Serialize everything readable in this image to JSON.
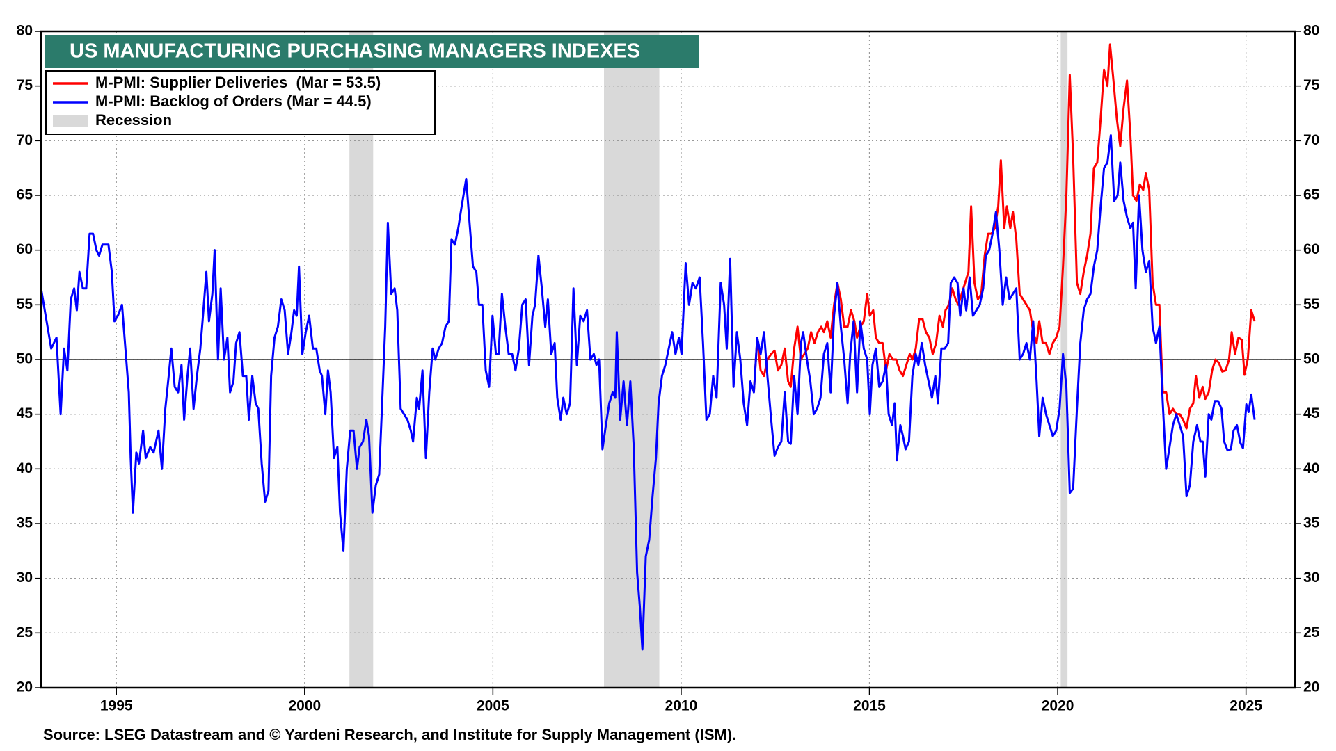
{
  "chart_data": {
    "type": "line",
    "title": "US MANUFACTURING PURCHASING MANAGERS INDEXES",
    "source": "Source: LSEG Datastream and © Yardeni Research, and Institute for Supply Management (ISM).",
    "xlim": [
      1993.0,
      2026.3
    ],
    "xticks": [
      1995,
      2000,
      2005,
      2010,
      2015,
      2020,
      2025
    ],
    "ylim": [
      20,
      80
    ],
    "yticks": [
      20,
      25,
      30,
      35,
      40,
      45,
      50,
      55,
      60,
      65,
      70,
      75,
      80
    ],
    "y2lim": [
      20,
      80
    ],
    "y2ticks": [
      20,
      25,
      30,
      35,
      40,
      45,
      50,
      55,
      60,
      65,
      70,
      75,
      80
    ],
    "grid": true,
    "reference_line": 50,
    "legend": "upper left",
    "recessions": {
      "name": "Recession",
      "color": "#d9d9d9",
      "periods": [
        [
          2001.19,
          2001.82
        ],
        [
          2007.95,
          2009.42
        ],
        [
          2020.08,
          2020.26
        ]
      ]
    },
    "series": [
      {
        "name": "M-PMI: Supplier Deliveries  (Mar = 53.5)",
        "color": "#ff0000",
        "x": [
          2011.93,
          2012.02,
          2012.11,
          2012.2,
          2012.29,
          2012.39,
          2012.48,
          2012.57,
          2012.66,
          2012.75,
          2012.84,
          2012.91,
          2013.0,
          2013.09,
          2013.18,
          2013.27,
          2013.36,
          2013.45,
          2013.54,
          2013.63,
          2013.72,
          2013.79,
          2013.88,
          2013.97,
          2014.06,
          2014.15,
          2014.24,
          2014.33,
          2014.42,
          2014.51,
          2014.6,
          2014.67,
          2014.76,
          2014.85,
          2014.94,
          2015.01,
          2015.1,
          2015.17,
          2015.26,
          2015.35,
          2015.44,
          2015.53,
          2015.62,
          2015.71,
          2015.8,
          2015.89,
          2015.98,
          2016.07,
          2016.14,
          2016.23,
          2016.32,
          2016.41,
          2016.5,
          2016.59,
          2016.68,
          2016.77,
          2016.86,
          2016.95,
          2017.02,
          2017.11,
          2017.2,
          2017.29,
          2017.36,
          2017.45,
          2017.54,
          2017.63,
          2017.7,
          2017.79,
          2017.88,
          2017.97,
          2018.06,
          2018.15,
          2018.24,
          2018.33,
          2018.42,
          2018.49,
          2018.58,
          2018.65,
          2018.74,
          2018.81,
          2018.9,
          2018.99,
          2019.08,
          2019.17,
          2019.26,
          2019.35,
          2019.44,
          2019.51,
          2019.6,
          2019.69,
          2019.78,
          2019.87,
          2019.96,
          2020.05,
          2020.14,
          2020.23,
          2020.32,
          2020.41,
          2020.51,
          2020.6,
          2020.69,
          2020.78,
          2020.87,
          2020.96,
          2021.05,
          2021.14,
          2021.23,
          2021.32,
          2021.39,
          2021.48,
          2021.57,
          2021.66,
          2021.75,
          2021.84,
          2021.93,
          2022.0,
          2022.09,
          2022.18,
          2022.27,
          2022.34,
          2022.43,
          2022.52,
          2022.61,
          2022.7,
          2022.79,
          2022.88,
          2022.97,
          2023.06,
          2023.15,
          2023.24,
          2023.33,
          2023.42,
          2023.51,
          2023.6,
          2023.67,
          2023.76,
          2023.85,
          2023.92,
          2024.01,
          2024.1,
          2024.19,
          2024.28,
          2024.37,
          2024.46,
          2024.55,
          2024.62,
          2024.71,
          2024.8,
          2024.89,
          2024.96,
          2025.05,
          2025.14,
          2025.23
        ],
        "values": [
          47,
          52,
          49,
          48.5,
          50,
          50.5,
          50.8,
          49,
          49.5,
          51,
          48,
          47.5,
          51,
          53,
          50,
          50.5,
          51,
          52.5,
          51.5,
          52.5,
          53,
          52.5,
          53.5,
          52,
          55,
          57,
          55.5,
          53,
          53,
          54.5,
          53.5,
          52,
          53,
          53.5,
          56,
          54,
          54.5,
          52,
          51.5,
          51.5,
          49,
          50.5,
          50,
          50,
          49,
          48.5,
          49.5,
          50.5,
          50,
          51,
          53.7,
          53.7,
          52.5,
          52,
          50.5,
          51.5,
          54,
          53,
          54.5,
          55,
          56.5,
          55.5,
          55,
          56,
          57,
          58,
          64,
          57,
          55.5,
          56,
          59.5,
          61.5,
          61.5,
          62,
          64,
          68.2,
          62,
          64,
          62,
          63.5,
          61,
          56,
          55.5,
          55,
          54.5,
          52.5,
          51.5,
          53.5,
          51.5,
          51.5,
          50.5,
          51.5,
          52,
          53,
          58.5,
          65,
          76,
          68.5,
          57,
          56,
          58,
          59.5,
          61.5,
          67.5,
          68,
          72,
          76.5,
          75,
          78.8,
          75.5,
          72,
          69.5,
          73,
          75.5,
          70.5,
          65,
          64.5,
          66,
          65.5,
          67,
          65.5,
          57,
          55,
          55,
          47,
          47,
          45,
          45.5,
          45,
          45,
          44.5,
          43.7,
          45.5,
          46,
          48.5,
          46.5,
          47.5,
          46.4,
          47,
          49,
          50,
          49.7,
          48.9,
          49,
          50,
          52.5,
          50.5,
          52,
          51.8,
          48.6,
          50.1,
          54.5,
          53.5
        ]
      },
      {
        "name": "M-PMI: Backlog of Orders (Mar = 44.5)",
        "color": "#0000ff",
        "x": [
          1993.0,
          1993.27,
          1993.41,
          1993.52,
          1993.61,
          1993.7,
          1993.79,
          1993.88,
          1993.95,
          1994.02,
          1994.11,
          1994.2,
          1994.29,
          1994.38,
          1994.47,
          1994.54,
          1994.63,
          1994.79,
          1994.88,
          1994.95,
          1995.04,
          1995.15,
          1995.24,
          1995.33,
          1995.38,
          1995.44,
          1995.53,
          1995.6,
          1995.71,
          1995.78,
          1995.9,
          1995.99,
          1996.12,
          1996.21,
          1996.3,
          1996.39,
          1996.46,
          1996.55,
          1996.64,
          1996.73,
          1996.8,
          1996.89,
          1996.96,
          1997.05,
          1997.14,
          1997.23,
          1997.3,
          1997.39,
          1997.46,
          1997.55,
          1997.61,
          1997.7,
          1997.77,
          1997.86,
          1997.95,
          1998.02,
          1998.11,
          1998.18,
          1998.27,
          1998.36,
          1998.45,
          1998.52,
          1998.61,
          1998.7,
          1998.77,
          1998.86,
          1998.95,
          1999.04,
          1999.11,
          1999.2,
          1999.29,
          1999.38,
          1999.47,
          1999.56,
          1999.65,
          1999.72,
          1999.79,
          1999.85,
          1999.94,
          2000.03,
          2000.12,
          2000.22,
          2000.31,
          2000.4,
          2000.46,
          2000.55,
          2000.62,
          2000.69,
          2000.78,
          2000.87,
          2000.94,
          2001.03,
          2001.12,
          2001.21,
          2001.3,
          2001.39,
          2001.46,
          2001.55,
          2001.64,
          2001.71,
          2001.8,
          2001.89,
          2001.98,
          2002.07,
          2002.14,
          2002.21,
          2002.3,
          2002.39,
          2002.46,
          2002.55,
          2002.64,
          2002.73,
          2002.82,
          2002.88,
          2002.98,
          2003.04,
          2003.13,
          2003.22,
          2003.31,
          2003.4,
          2003.47,
          2003.56,
          2003.65,
          2003.74,
          2003.83,
          2003.9,
          2003.99,
          2004.08,
          2004.17,
          2004.29,
          2004.38,
          2004.47,
          2004.56,
          2004.63,
          2004.72,
          2004.81,
          2004.9,
          2004.99,
          2005.08,
          2005.15,
          2005.24,
          2005.33,
          2005.42,
          2005.51,
          2005.6,
          2005.69,
          2005.78,
          2005.87,
          2005.96,
          2006.05,
          2006.12,
          2006.21,
          2006.3,
          2006.39,
          2006.46,
          2006.55,
          2006.64,
          2006.71,
          2006.8,
          2006.87,
          2006.96,
          2007.05,
          2007.14,
          2007.23,
          2007.32,
          2007.41,
          2007.5,
          2007.59,
          2007.68,
          2007.75,
          2007.82,
          2007.91,
          2008.0,
          2008.09,
          2008.18,
          2008.25,
          2008.29,
          2008.38,
          2008.47,
          2008.56,
          2008.65,
          2008.74,
          2008.83,
          2008.9,
          2008.97,
          2009.06,
          2009.15,
          2009.24,
          2009.33,
          2009.4,
          2009.49,
          2009.58,
          2009.67,
          2009.76,
          2009.85,
          2009.94,
          2010.01,
          2010.12,
          2010.21,
          2010.3,
          2010.39,
          2010.49,
          2010.58,
          2010.67,
          2010.76,
          2010.85,
          2010.94,
          2011.05,
          2011.14,
          2011.21,
          2011.3,
          2011.39,
          2011.48,
          2011.57,
          2011.66,
          2011.75,
          2011.84,
          2011.93,
          2012.02,
          2012.11,
          2012.2,
          2012.29,
          2012.39,
          2012.48,
          2012.57,
          2012.66,
          2012.75,
          2012.84,
          2012.91,
          2013.0,
          2013.09,
          2013.18,
          2013.24,
          2013.34,
          2013.43,
          2013.52,
          2013.61,
          2013.7,
          2013.79,
          2013.88,
          2013.97,
          2014.06,
          2014.15,
          2014.24,
          2014.33,
          2014.42,
          2014.49,
          2014.58,
          2014.67,
          2014.76,
          2014.85,
          2014.94,
          2015.01,
          2015.08,
          2015.17,
          2015.26,
          2015.35,
          2015.44,
          2015.51,
          2015.6,
          2015.67,
          2015.73,
          2015.82,
          2015.89,
          2015.96,
          2016.05,
          2016.14,
          2016.23,
          2016.3,
          2016.39,
          2016.48,
          2016.57,
          2016.66,
          2016.75,
          2016.82,
          2016.91,
          2017.0,
          2017.09,
          2017.16,
          2017.25,
          2017.34,
          2017.41,
          2017.5,
          2017.57,
          2017.66,
          2017.75,
          2017.84,
          2017.93,
          2018.02,
          2018.09,
          2018.18,
          2018.27,
          2018.36,
          2018.45,
          2018.54,
          2018.63,
          2018.72,
          2018.81,
          2018.9,
          2018.99,
          2019.08,
          2019.17,
          2019.26,
          2019.35,
          2019.44,
          2019.51,
          2019.6,
          2019.69,
          2019.78,
          2019.87,
          2019.96,
          2020.05,
          2020.14,
          2020.23,
          2020.32,
          2020.41,
          2020.51,
          2020.6,
          2020.69,
          2020.78,
          2020.87,
          2020.96,
          2021.05,
          2021.14,
          2021.23,
          2021.32,
          2021.41,
          2021.5,
          2021.59,
          2021.66,
          2021.75,
          2021.84,
          2021.93,
          2022.0,
          2022.07,
          2022.16,
          2022.25,
          2022.34,
          2022.43,
          2022.52,
          2022.61,
          2022.7,
          2022.79,
          2022.88,
          2022.97,
          2023.06,
          2023.15,
          2023.24,
          2023.33,
          2023.42,
          2023.51,
          2023.6,
          2023.7,
          2023.79,
          2023.85,
          2023.92,
          2024.01,
          2024.08,
          2024.17,
          2024.26,
          2024.35,
          2024.42,
          2024.51,
          2024.6,
          2024.67,
          2024.76,
          2024.85,
          2024.92,
          2025.01,
          2025.07,
          2025.14,
          2025.23
        ],
        "values": [
          56.5,
          51,
          52,
          45,
          51,
          49,
          55.5,
          56.5,
          54.5,
          58,
          56.5,
          56.5,
          61.5,
          61.5,
          60,
          59.5,
          60.5,
          60.5,
          58,
          53.5,
          54,
          55,
          51,
          47,
          41,
          36,
          41.5,
          40.5,
          43.5,
          41,
          42,
          41.5,
          43.5,
          40,
          45.5,
          48.5,
          51,
          47.5,
          47,
          49.5,
          44.5,
          48.5,
          51,
          45.5,
          48.5,
          51,
          54,
          58,
          53.5,
          56,
          60,
          50,
          56.5,
          50,
          52,
          47,
          48,
          51.5,
          52.5,
          48.5,
          48.5,
          44.5,
          48.5,
          46,
          45.5,
          40.5,
          37,
          38,
          48.5,
          52,
          53,
          55.5,
          54.5,
          50.5,
          52.5,
          54.5,
          54,
          58.5,
          50.5,
          52.5,
          54,
          51,
          51,
          49,
          48.5,
          45,
          49,
          47,
          41,
          42,
          36,
          32.5,
          40,
          43.5,
          43.5,
          40,
          42,
          42.5,
          44.5,
          43,
          36,
          38.5,
          39.5,
          47,
          53,
          62.5,
          56,
          56.5,
          54.5,
          45.5,
          45,
          44.5,
          43.5,
          42.5,
          46.5,
          45.5,
          49,
          41,
          47,
          51,
          50,
          51,
          51.5,
          53,
          53.5,
          61,
          60.5,
          62,
          64,
          66.5,
          62.5,
          58.5,
          58,
          55,
          55,
          49,
          47.5,
          54,
          50.5,
          50.5,
          56,
          53,
          50.5,
          50.5,
          49,
          51,
          55,
          55.5,
          49.5,
          54,
          55,
          59.5,
          56.5,
          53,
          55.5,
          50.5,
          51.5,
          46.5,
          44.5,
          46.5,
          45,
          46,
          56.5,
          49.5,
          54,
          53.5,
          54.5,
          50,
          50.5,
          49.5,
          50,
          41.8,
          44,
          46,
          47,
          46.5,
          52.5,
          44.5,
          48,
          44,
          48,
          42,
          30.5,
          27.5,
          23.5,
          32,
          33.5,
          37.5,
          41,
          46,
          48.5,
          49.5,
          51,
          52.5,
          50.5,
          52,
          50.5,
          58.8,
          55,
          57,
          56.5,
          57.5,
          51.5,
          44.5,
          45,
          48.5,
          46.5,
          57,
          55,
          51,
          59.2,
          47.5,
          52.5,
          50,
          46,
          44,
          48,
          47,
          52,
          50.5,
          52.5,
          48.5,
          44.5,
          41.2,
          42,
          42.5,
          47,
          42.5,
          42.3,
          48.5,
          45,
          51.5,
          52.5,
          50,
          48,
          45,
          45.5,
          46.5,
          50.5,
          51.5,
          47,
          54,
          57,
          53,
          50,
          46,
          50.5,
          53.5,
          47,
          53.5,
          51,
          50,
          45,
          49.5,
          51,
          47.5,
          48,
          49.5,
          45,
          44,
          46,
          40.8,
          44,
          43,
          41.8,
          42.5,
          48.5,
          50.5,
          49.5,
          51.5,
          49.5,
          48,
          46.5,
          48.5,
          46,
          51,
          51,
          51.5,
          57,
          57.5,
          57,
          54,
          56.5,
          54.5,
          57.5,
          54,
          54.5,
          55,
          56.5,
          59.5,
          60,
          61.5,
          63.5,
          60,
          55,
          57.5,
          55.5,
          56,
          56.5,
          50,
          50.5,
          51.5,
          50,
          53.5,
          48,
          43,
          46.5,
          45,
          44,
          43,
          43.5,
          45.5,
          50.5,
          47.5,
          37.8,
          38.2,
          45.5,
          51.5,
          54.5,
          55.5,
          56,
          58.5,
          60,
          64,
          67.5,
          68,
          70.5,
          64.5,
          65,
          68,
          64.5,
          63,
          62,
          62.5,
          56.5,
          65,
          60,
          58,
          59,
          53,
          51.5,
          53,
          46,
          40,
          42,
          44,
          45,
          44,
          43,
          37.5,
          38.5,
          42.5,
          44,
          42.5,
          42.5,
          39.3,
          45,
          44.5,
          46.2,
          46.2,
          45.5,
          42.5,
          41.7,
          41.8,
          43.5,
          44,
          42.4,
          41.9,
          45.9,
          45.2,
          46.8,
          44.5
        ]
      }
    ]
  }
}
